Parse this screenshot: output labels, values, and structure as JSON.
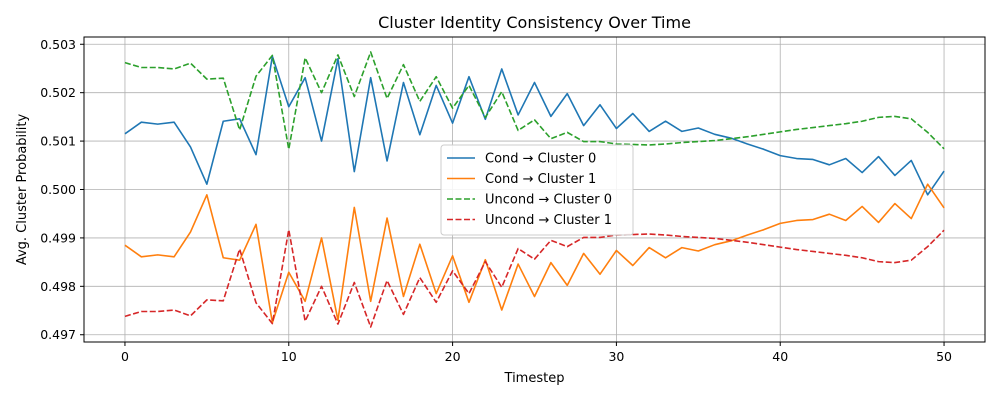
{
  "chart_data": {
    "type": "line",
    "title": "Cluster Identity Consistency Over Time",
    "xlabel": "Timestep",
    "ylabel": "Avg. Cluster Probability",
    "xlim": [
      -2.5,
      52.5
    ],
    "ylim": [
      0.49685,
      0.50315
    ],
    "xticks": [
      0,
      10,
      20,
      30,
      40,
      50
    ],
    "yticks": [
      0.497,
      0.498,
      0.499,
      0.5,
      0.501,
      0.502,
      0.503
    ],
    "grid": true,
    "legend_position": "center-right",
    "x": [
      0,
      1,
      2,
      3,
      4,
      5,
      6,
      7,
      8,
      9,
      10,
      11,
      12,
      13,
      14,
      15,
      16,
      17,
      18,
      19,
      20,
      21,
      22,
      23,
      24,
      25,
      26,
      27,
      28,
      29,
      30,
      31,
      32,
      33,
      34,
      35,
      36,
      37,
      38,
      39,
      40,
      41,
      42,
      43,
      44,
      45,
      46,
      47,
      48,
      49,
      50
    ],
    "series": [
      {
        "name": "Cond → Cluster 0",
        "color": "#1f77b4",
        "style": "solid",
        "values": [
          0.50115,
          0.50139,
          0.50135,
          0.50139,
          0.50088,
          0.50011,
          0.50141,
          0.50146,
          0.50072,
          0.50275,
          0.50171,
          0.50231,
          0.501,
          0.5027,
          0.50037,
          0.50231,
          0.50059,
          0.50221,
          0.50113,
          0.50215,
          0.50137,
          0.50233,
          0.50145,
          0.50249,
          0.50154,
          0.50221,
          0.50151,
          0.50198,
          0.50132,
          0.50175,
          0.50126,
          0.50157,
          0.5012,
          0.50141,
          0.5012,
          0.50127,
          0.50114,
          0.50106,
          0.50094,
          0.50083,
          0.5007,
          0.50064,
          0.50062,
          0.50051,
          0.50064,
          0.50035,
          0.50068,
          0.50029,
          0.5006,
          0.49989,
          0.50038
        ]
      },
      {
        "name": "Cond → Cluster 1",
        "color": "#ff7f0e",
        "style": "solid",
        "values": [
          0.49885,
          0.49861,
          0.49865,
          0.49861,
          0.49912,
          0.49989,
          0.49859,
          0.49854,
          0.49928,
          0.49725,
          0.49829,
          0.49769,
          0.499,
          0.4973,
          0.49963,
          0.49769,
          0.49941,
          0.49779,
          0.49887,
          0.49785,
          0.49863,
          0.49767,
          0.49855,
          0.49751,
          0.49846,
          0.49779,
          0.49849,
          0.49802,
          0.49868,
          0.49825,
          0.49874,
          0.49843,
          0.4988,
          0.49859,
          0.4988,
          0.49873,
          0.49886,
          0.49894,
          0.49906,
          0.49917,
          0.4993,
          0.49936,
          0.49938,
          0.49949,
          0.49936,
          0.49965,
          0.49932,
          0.49971,
          0.4994,
          0.50011,
          0.49962
        ]
      },
      {
        "name": "Uncond → Cluster 0",
        "color": "#2ca02c",
        "style": "dashed",
        "values": [
          0.50262,
          0.50252,
          0.50252,
          0.50249,
          0.50261,
          0.50228,
          0.5023,
          0.50123,
          0.50234,
          0.50277,
          0.50083,
          0.50272,
          0.502,
          0.50278,
          0.50192,
          0.50284,
          0.50188,
          0.50258,
          0.50182,
          0.50233,
          0.50168,
          0.50215,
          0.50149,
          0.50202,
          0.50122,
          0.50144,
          0.50105,
          0.50118,
          0.50099,
          0.50099,
          0.50094,
          0.50093,
          0.50092,
          0.50094,
          0.50097,
          0.50099,
          0.50101,
          0.50105,
          0.50109,
          0.50114,
          0.50119,
          0.50124,
          0.50128,
          0.50132,
          0.50136,
          0.50141,
          0.50149,
          0.50151,
          0.50146,
          0.50118,
          0.50084
        ]
      },
      {
        "name": "Uncond → Cluster 1",
        "color": "#d62728",
        "style": "dashed",
        "values": [
          0.49738,
          0.49748,
          0.49748,
          0.49751,
          0.49739,
          0.49772,
          0.4977,
          0.49877,
          0.49766,
          0.49723,
          0.49917,
          0.49728,
          0.498,
          0.49722,
          0.49808,
          0.49716,
          0.49812,
          0.49742,
          0.49818,
          0.49767,
          0.49832,
          0.49785,
          0.49851,
          0.49798,
          0.49878,
          0.49856,
          0.49895,
          0.49882,
          0.49901,
          0.49901,
          0.49906,
          0.49907,
          0.49908,
          0.49906,
          0.49903,
          0.49901,
          0.49899,
          0.49895,
          0.49891,
          0.49886,
          0.49881,
          0.49876,
          0.49872,
          0.49868,
          0.49864,
          0.49859,
          0.49851,
          0.49849,
          0.49854,
          0.49882,
          0.49916
        ]
      }
    ]
  }
}
